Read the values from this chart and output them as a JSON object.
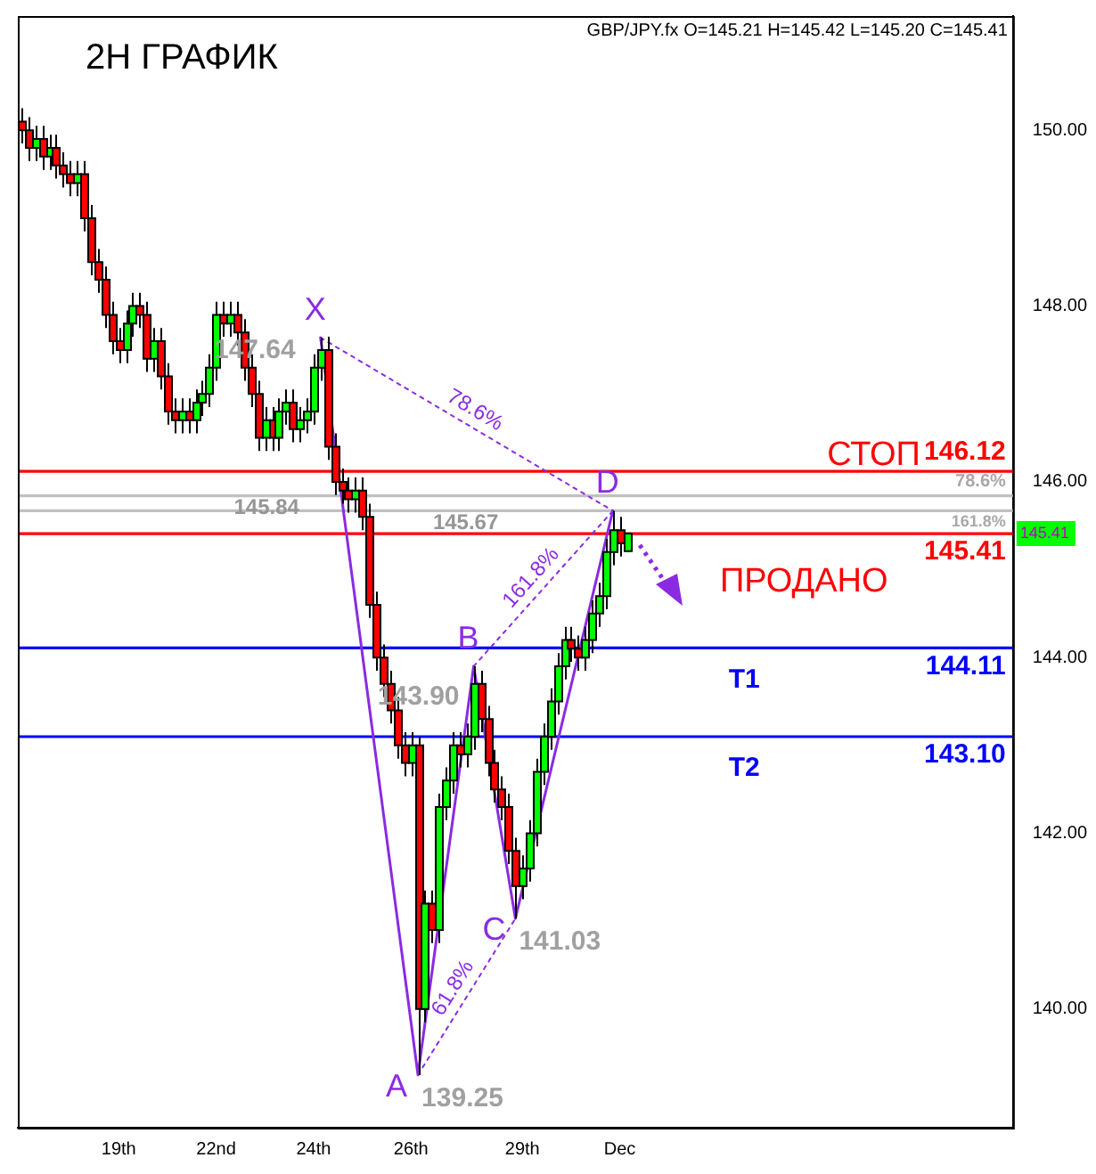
{
  "chart_data": {
    "type": "candlestick",
    "title": "2H ГРАФИК",
    "subtitle": "GBP/JPY.fx O=145.21 H=145.42 L=145.20 C=145.41",
    "categories": [
      null,
      null,
      null,
      null,
      null,
      null,
      null,
      null,
      null,
      null,
      null,
      null,
      null,
      null,
      "19th",
      null,
      null,
      null,
      null,
      null,
      null,
      null,
      null,
      null,
      null,
      null,
      null,
      null,
      "22nd",
      null,
      null,
      null,
      null,
      null,
      null,
      null,
      null,
      null,
      null,
      null,
      null,
      null,
      "24th",
      null,
      null,
      null,
      null,
      null,
      null,
      null,
      null,
      null,
      null,
      null,
      null,
      null,
      "26th",
      null,
      null,
      null,
      null,
      null,
      null,
      null,
      null,
      null,
      null,
      null,
      null,
      null,
      null,
      null,
      "29th",
      null,
      null,
      null,
      null,
      null,
      null,
      null,
      null,
      null,
      null,
      null,
      null,
      null,
      "Dec",
      null,
      null,
      null,
      null,
      null,
      null,
      null,
      null,
      null,
      null,
      null,
      null,
      null,
      null,
      null,
      null,
      null,
      null,
      null,
      null,
      null,
      null,
      null,
      null,
      null,
      null,
      null,
      null,
      null,
      null,
      null,
      null,
      null,
      null,
      null,
      null,
      null,
      null,
      null,
      null,
      null,
      null,
      null,
      null,
      null,
      null,
      null,
      null,
      null,
      null,
      null,
      null,
      null,
      null,
      null,
      null
    ],
    "ohlc": [
      [
        150.1,
        150.25,
        149.85,
        150.0
      ],
      [
        150.0,
        150.15,
        149.65,
        149.8
      ],
      [
        149.8,
        150.05,
        149.65,
        149.9
      ],
      [
        149.9,
        150.05,
        149.55,
        149.7
      ],
      [
        149.7,
        149.95,
        149.55,
        149.8
      ],
      [
        149.8,
        149.95,
        149.45,
        149.6
      ],
      [
        149.6,
        149.75,
        149.35,
        149.5
      ],
      [
        149.5,
        149.65,
        149.25,
        149.4
      ],
      [
        149.4,
        149.65,
        149.25,
        149.5
      ],
      [
        149.5,
        149.65,
        148.85,
        149.0
      ],
      [
        149.0,
        149.15,
        148.35,
        148.5
      ],
      [
        148.5,
        148.65,
        148.15,
        148.3
      ],
      [
        148.3,
        148.45,
        147.75,
        147.9
      ],
      [
        147.9,
        148.05,
        147.45,
        147.6
      ],
      [
        147.6,
        147.75,
        147.35,
        147.5
      ],
      [
        147.5,
        147.95,
        147.35,
        147.8
      ],
      [
        147.8,
        148.15,
        147.65,
        148.0
      ],
      [
        148.0,
        148.15,
        147.75,
        147.9
      ],
      [
        147.9,
        148.05,
        147.25,
        147.4
      ],
      [
        147.4,
        147.75,
        147.25,
        147.6
      ],
      [
        147.6,
        147.75,
        147.05,
        147.2
      ],
      [
        147.2,
        147.35,
        146.65,
        146.8
      ],
      [
        146.8,
        146.95,
        146.55,
        146.7
      ],
      [
        146.7,
        146.95,
        146.55,
        146.8
      ],
      [
        146.8,
        146.95,
        146.55,
        146.7
      ],
      [
        146.7,
        147.05,
        146.55,
        146.9
      ],
      [
        146.9,
        147.15,
        146.75,
        147.0
      ],
      [
        147.0,
        147.45,
        146.85,
        147.3
      ],
      [
        147.3,
        148.05,
        147.15,
        147.9
      ],
      [
        147.9,
        148.05,
        147.65,
        147.8
      ],
      [
        147.8,
        148.05,
        147.65,
        147.9
      ],
      [
        147.9,
        148.05,
        147.55,
        147.7
      ],
      [
        147.7,
        147.85,
        147.15,
        147.3
      ],
      [
        147.3,
        147.45,
        146.85,
        147.0
      ],
      [
        147.0,
        147.15,
        146.35,
        146.5
      ],
      [
        146.5,
        146.85,
        146.35,
        146.7
      ],
      [
        146.7,
        146.85,
        146.35,
        146.5
      ],
      [
        146.5,
        146.95,
        146.35,
        146.8
      ],
      [
        146.8,
        147.05,
        146.65,
        146.9
      ],
      [
        146.9,
        147.05,
        146.45,
        146.6
      ],
      [
        146.6,
        146.85,
        146.45,
        146.7
      ],
      [
        146.7,
        146.95,
        146.55,
        146.8
      ],
      [
        146.8,
        147.45,
        146.65,
        147.3
      ],
      [
        147.3,
        147.64,
        147.15,
        147.5
      ],
      [
        147.5,
        147.65,
        146.25,
        146.4
      ],
      [
        146.4,
        146.55,
        145.85,
        146.0
      ],
      [
        146.0,
        146.15,
        145.75,
        145.9
      ],
      [
        145.9,
        146.05,
        145.65,
        145.8
      ],
      [
        145.8,
        146.05,
        145.65,
        145.9
      ],
      [
        145.9,
        146.05,
        145.45,
        145.6
      ],
      [
        145.6,
        145.75,
        144.45,
        144.6
      ],
      [
        144.6,
        144.75,
        143.85,
        144.0
      ],
      [
        144.0,
        144.15,
        143.55,
        143.7
      ],
      [
        143.7,
        143.85,
        143.25,
        143.4
      ],
      [
        143.4,
        143.55,
        142.85,
        143.0
      ],
      [
        143.0,
        143.15,
        142.65,
        142.8
      ],
      [
        142.8,
        143.15,
        142.65,
        143.0
      ],
      [
        143.0,
        143.1,
        139.25,
        140.0
      ],
      [
        140.0,
        141.35,
        139.85,
        141.2
      ],
      [
        141.2,
        141.35,
        140.75,
        140.9
      ],
      [
        140.9,
        142.45,
        140.75,
        142.3
      ],
      [
        142.3,
        142.75,
        142.15,
        142.6
      ],
      [
        142.6,
        143.15,
        142.45,
        143.0
      ],
      [
        143.0,
        143.15,
        142.75,
        142.9
      ],
      [
        142.9,
        143.25,
        142.75,
        143.1
      ],
      [
        143.1,
        143.9,
        142.95,
        143.7
      ],
      [
        143.7,
        143.85,
        143.15,
        143.3
      ],
      [
        143.3,
        143.45,
        142.65,
        142.8
      ],
      [
        142.8,
        142.95,
        142.35,
        142.5
      ],
      [
        142.5,
        142.65,
        142.15,
        142.3
      ],
      [
        142.3,
        142.45,
        141.65,
        141.8
      ],
      [
        141.8,
        141.95,
        141.03,
        141.4
      ],
      [
        141.4,
        141.75,
        141.25,
        141.6
      ],
      [
        141.6,
        142.15,
        141.45,
        142.0
      ],
      [
        142.0,
        142.85,
        141.85,
        142.7
      ],
      [
        142.7,
        143.25,
        142.55,
        143.1
      ],
      [
        143.1,
        143.65,
        142.95,
        143.5
      ],
      [
        143.5,
        144.05,
        143.35,
        143.9
      ],
      [
        143.9,
        144.35,
        143.75,
        144.2
      ],
      [
        144.2,
        144.35,
        143.95,
        144.1
      ],
      [
        144.1,
        144.25,
        143.85,
        144.0
      ],
      [
        144.0,
        144.35,
        143.85,
        144.2
      ],
      [
        144.2,
        144.65,
        144.05,
        144.5
      ],
      [
        144.5,
        144.85,
        144.35,
        144.7
      ],
      [
        144.7,
        145.35,
        144.55,
        145.2
      ],
      [
        145.2,
        145.67,
        145.05,
        145.45
      ],
      [
        145.45,
        145.6,
        145.15,
        145.3
      ],
      [
        145.21,
        145.42,
        145.2,
        145.41
      ],
      null,
      null,
      null,
      null,
      null,
      null,
      null,
      null,
      null,
      null,
      null,
      null,
      null,
      null,
      null,
      null,
      null,
      null,
      null,
      null,
      null,
      null,
      null,
      null,
      null,
      null,
      null,
      null,
      null,
      null,
      null,
      null,
      null,
      null,
      null,
      null,
      null,
      null,
      null,
      null,
      null,
      null,
      null,
      null,
      null,
      null,
      null,
      null,
      null,
      null,
      null,
      null,
      null,
      null,
      null
    ],
    "series": [
      {
        "type": "line",
        "color": "#8a2be2",
        "values": [
          null,
          null,
          null,
          null,
          null,
          null,
          null,
          null,
          null,
          null,
          null,
          null,
          null,
          null,
          null,
          null,
          null,
          null,
          null,
          null,
          null,
          null,
          null,
          null,
          null,
          null,
          null,
          null,
          null,
          null,
          null,
          null,
          null,
          null,
          null,
          null,
          null,
          null,
          null,
          null,
          null,
          null,
          null,
          147.64,
          null,
          null,
          null,
          null,
          null,
          null,
          null,
          null,
          null,
          null,
          null,
          null,
          null,
          139.25,
          null,
          null,
          null,
          null,
          null,
          null,
          null,
          143.9,
          null,
          null,
          null,
          null,
          null,
          141.03,
          null,
          null,
          null,
          null,
          null,
          null,
          null,
          null,
          null,
          null,
          null,
          null,
          null,
          145.67,
          null,
          null,
          null,
          null,
          null,
          null,
          null,
          null,
          null,
          null,
          null,
          null,
          null,
          null,
          null,
          null,
          null,
          null,
          null,
          null,
          null,
          null,
          null,
          null,
          null,
          null,
          null,
          null,
          null,
          null,
          null,
          null,
          null,
          null,
          null,
          null,
          null,
          null,
          null,
          null,
          null,
          null,
          null,
          null,
          null,
          null,
          null,
          null,
          null,
          null,
          null,
          null,
          null,
          null,
          null,
          null,
          null
        ],
        "value_labels": [
          null,
          null,
          null,
          null,
          null,
          null,
          null,
          null,
          null,
          null,
          null,
          null,
          null,
          null,
          null,
          null,
          null,
          null,
          null,
          null,
          null,
          null,
          null,
          null,
          null,
          null,
          null,
          null,
          null,
          null,
          null,
          null,
          null,
          null,
          null,
          null,
          null,
          null,
          null,
          null,
          null,
          null,
          null,
          "147.64",
          null,
          null,
          null,
          null,
          null,
          null,
          null,
          null,
          null,
          null,
          null,
          null,
          null,
          "139.25",
          null,
          null,
          null,
          null,
          null,
          null,
          null,
          "143.90",
          null,
          null,
          null,
          null,
          null,
          "141.03",
          null,
          null,
          null,
          null,
          null,
          null,
          null,
          null,
          null,
          null,
          null,
          null,
          null,
          null,
          null,
          null,
          null,
          null,
          null,
          null,
          null,
          null,
          null,
          null,
          null,
          null,
          null,
          null,
          null,
          null,
          null,
          null,
          null,
          null,
          null,
          null,
          null,
          null,
          null,
          null,
          null,
          null,
          null,
          null,
          null,
          null,
          null,
          null,
          null,
          null,
          null,
          null,
          null,
          null,
          null,
          null,
          null,
          null,
          null,
          null,
          null,
          null,
          null,
          null,
          null,
          null,
          null,
          null,
          null,
          null,
          null
        ]
      },
      {
        "type": "line",
        "name": "78.6%",
        "color": "#8a2be2",
        "line_style": "dotted",
        "values": [
          null,
          null,
          null,
          null,
          null,
          null,
          null,
          null,
          null,
          null,
          null,
          null,
          null,
          null,
          null,
          null,
          null,
          null,
          null,
          null,
          null,
          null,
          null,
          null,
          null,
          null,
          null,
          null,
          null,
          null,
          null,
          null,
          null,
          null,
          null,
          null,
          null,
          null,
          null,
          null,
          null,
          null,
          null,
          147.64,
          null,
          null,
          null,
          null,
          null,
          null,
          null,
          null,
          null,
          null,
          null,
          null,
          null,
          null,
          null,
          null,
          null,
          null,
          null,
          null,
          null,
          null,
          null,
          null,
          null,
          null,
          null,
          null,
          null,
          null,
          null,
          null,
          null,
          null,
          null,
          null,
          null,
          null,
          null,
          null,
          null,
          145.67,
          null,
          null,
          null,
          null,
          null,
          null,
          null,
          null,
          null,
          null,
          null,
          null,
          null,
          null,
          null,
          null,
          null,
          null,
          null,
          null,
          null,
          null,
          null,
          null,
          null,
          null,
          null,
          null,
          null,
          null,
          null,
          null,
          null,
          null,
          null,
          null,
          null,
          null,
          null,
          null,
          null,
          null,
          null,
          null,
          null,
          null,
          null,
          null,
          null,
          null,
          null,
          null,
          null,
          null,
          null,
          null,
          null
        ]
      },
      {
        "type": "line",
        "name": "61.8%",
        "color": "#8a2be2",
        "line_style": "dotted",
        "values": [
          null,
          null,
          null,
          null,
          null,
          null,
          null,
          null,
          null,
          null,
          null,
          null,
          null,
          null,
          null,
          null,
          null,
          null,
          null,
          null,
          null,
          null,
          null,
          null,
          null,
          null,
          null,
          null,
          null,
          null,
          null,
          null,
          null,
          null,
          null,
          null,
          null,
          null,
          null,
          null,
          null,
          null,
          null,
          null,
          null,
          null,
          null,
          null,
          null,
          null,
          null,
          null,
          null,
          null,
          null,
          null,
          null,
          139.25,
          null,
          null,
          null,
          null,
          null,
          null,
          null,
          null,
          null,
          null,
          null,
          null,
          null,
          141.03,
          null,
          null,
          null,
          null,
          null,
          null,
          null,
          null,
          null,
          null,
          null,
          null,
          null,
          null,
          null,
          null,
          null,
          null,
          null,
          null,
          null,
          null,
          null,
          null,
          null,
          null,
          null,
          null,
          null,
          null,
          null,
          null,
          null,
          null,
          null,
          null,
          null,
          null,
          null,
          null,
          null,
          null,
          null,
          null,
          null,
          null,
          null,
          null,
          null,
          null,
          null,
          null,
          null,
          null,
          null,
          null,
          null,
          null,
          null,
          null,
          null,
          null,
          null,
          null,
          null,
          null,
          null,
          null,
          null,
          null,
          null
        ]
      },
      {
        "type": "line",
        "name": "161.8%",
        "color": "#8a2be2",
        "line_style": "dotted",
        "values": [
          null,
          null,
          null,
          null,
          null,
          null,
          null,
          null,
          null,
          null,
          null,
          null,
          null,
          null,
          null,
          null,
          null,
          null,
          null,
          null,
          null,
          null,
          null,
          null,
          null,
          null,
          null,
          null,
          null,
          null,
          null,
          null,
          null,
          null,
          null,
          null,
          null,
          null,
          null,
          null,
          null,
          null,
          null,
          null,
          null,
          null,
          null,
          null,
          null,
          null,
          null,
          null,
          null,
          null,
          null,
          null,
          null,
          null,
          null,
          null,
          null,
          null,
          null,
          null,
          null,
          143.9,
          null,
          null,
          null,
          null,
          null,
          null,
          null,
          null,
          null,
          null,
          null,
          null,
          null,
          null,
          null,
          null,
          null,
          null,
          null,
          145.67,
          null,
          null,
          null,
          null,
          null,
          null,
          null,
          null,
          null,
          null,
          null,
          null,
          null,
          null,
          null,
          null,
          null,
          null,
          null,
          null,
          null,
          null,
          null,
          null,
          null,
          null,
          null,
          null,
          null,
          null,
          null,
          null,
          null,
          null,
          null,
          null,
          null,
          null,
          null,
          null,
          null,
          null,
          null,
          null,
          null,
          null,
          null,
          null,
          null,
          null,
          null,
          null,
          null,
          null,
          null,
          null,
          null
        ]
      }
    ],
    "ylim": [
      138.65,
      151.3
    ],
    "yticks": [
      {
        "value": 140,
        "label": "140.00"
      },
      {
        "value": 142,
        "label": "142.00"
      },
      {
        "value": 144,
        "label": "144.00"
      },
      {
        "value": 146,
        "label": "146.00"
      },
      {
        "value": 148,
        "label": "148.00"
      },
      {
        "value": 150,
        "label": "150.00"
      }
    ],
    "ref_lines": [
      {
        "axis": "y",
        "value": 146.12,
        "label": "146.12",
        "color": "#ff0000"
      },
      {
        "axis": "y",
        "value": 145.41,
        "label": "145.41",
        "color": "#ff0000"
      },
      {
        "axis": "y",
        "value": 144.11,
        "label": "144.11",
        "color": "#0000ff"
      },
      {
        "axis": "y",
        "value": 143.1,
        "label": "143.10",
        "color": "#0000ff"
      },
      {
        "axis": "y",
        "value": 145.84,
        "label": "145.84",
        "color": "#c0c0c0"
      },
      {
        "axis": "y",
        "value": 145.67,
        "label": "145.67",
        "color": "#c0c0c0"
      }
    ],
    "annotations": [
      {
        "text": "X",
        "y": 147.64
      },
      "A",
      {
        "text": "B",
        "y": 143.9
      },
      "C",
      {
        "text": "D",
        "y": 145.67
      },
      {
        "text": "СТОП",
        "y": 146.12
      },
      {
        "text": "ПРОДАНО",
        "y": 145.41
      },
      {
        "text": "T1",
        "y": 144.11
      },
      {
        "text": "T2",
        "y": 143.1
      },
      {
        "text": "78.6%",
        "y": 145.84
      },
      {
        "text": "161.8%",
        "y": 145.67
      },
      {
        "text": "145.41",
        "y": 145.41
      }
    ]
  }
}
